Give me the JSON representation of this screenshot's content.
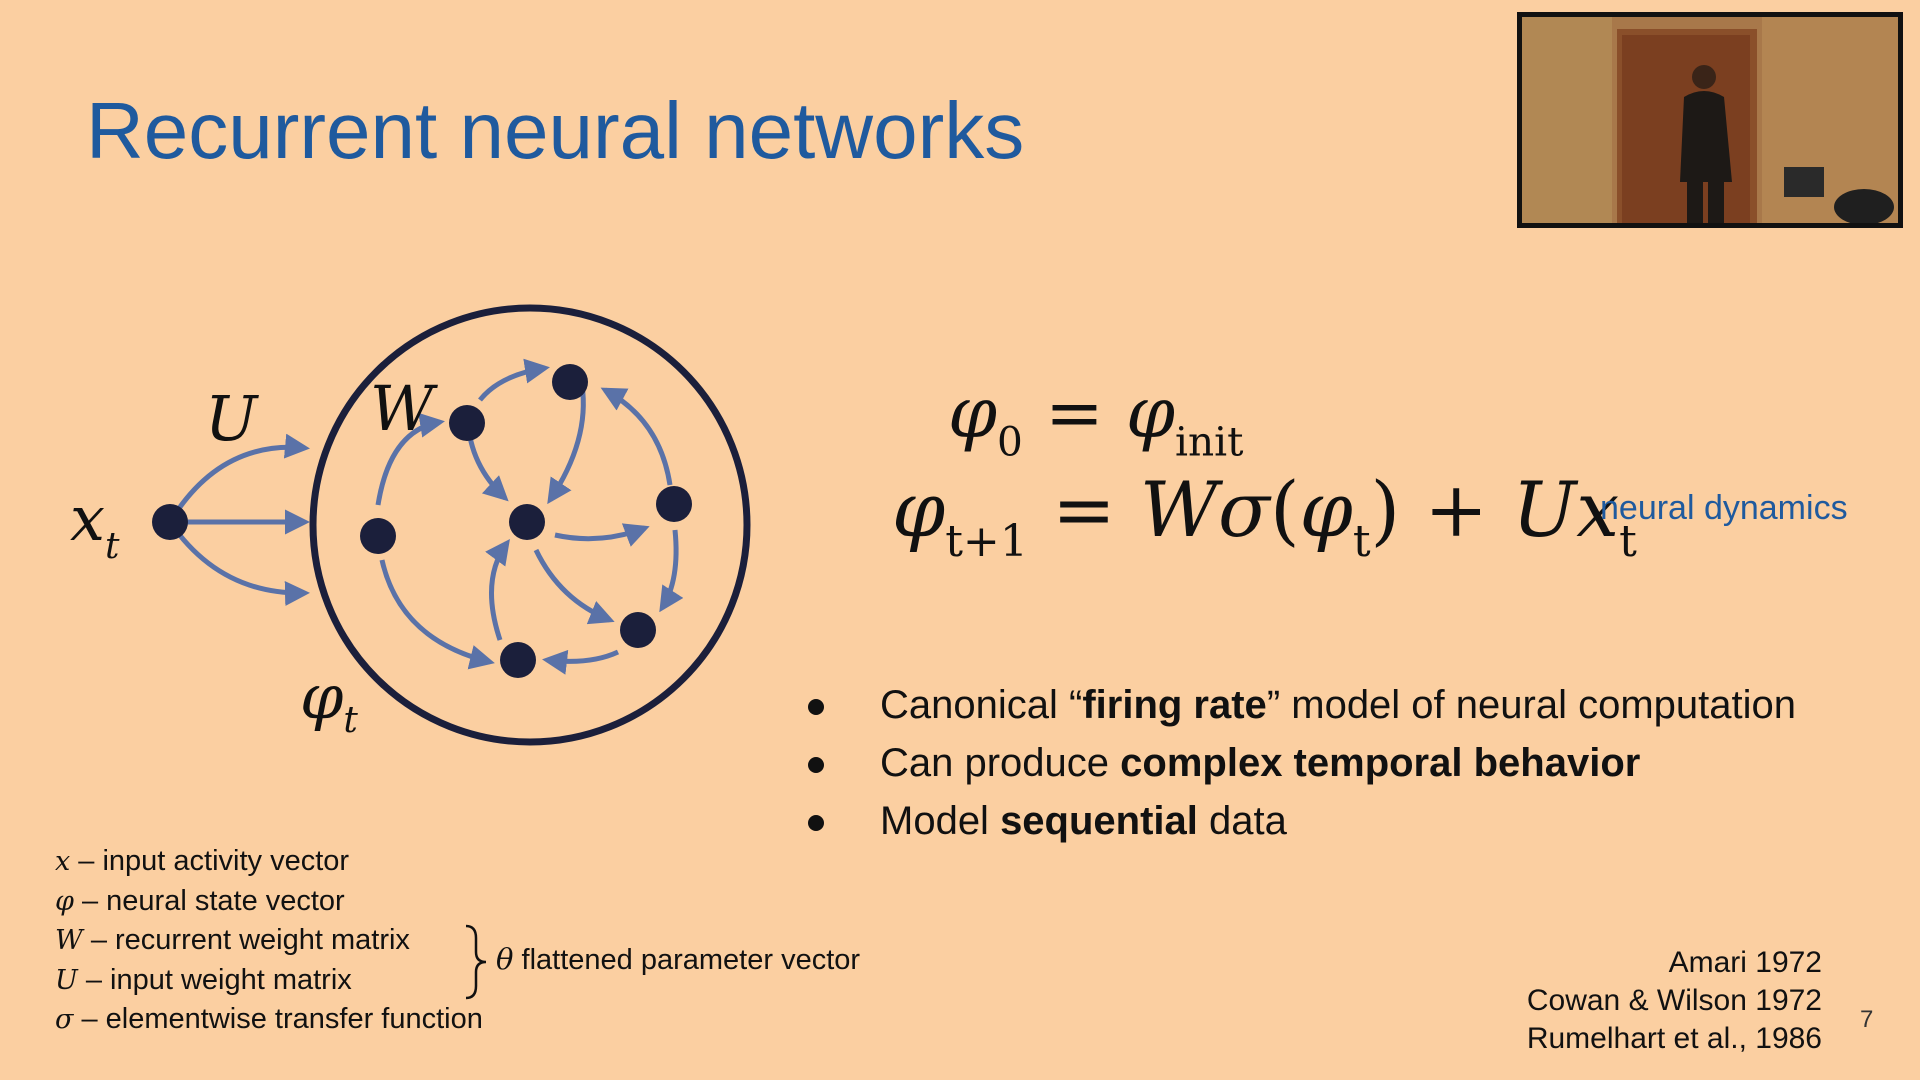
{
  "slide": {
    "title": "Recurrent neural networks",
    "page_number": "7",
    "colors": {
      "background": "#fbcfa1",
      "title": "#1f5a9e",
      "node": "#1b1f3b",
      "edge": "#5a72a8"
    }
  },
  "webcam": {
    "description_icon": "presenter-video-icon"
  },
  "diagram": {
    "input_label": "x",
    "input_sub": "t",
    "input_weight_label": "U",
    "recurrent_weight_label": "W",
    "state_label": "φ",
    "state_sub": "t"
  },
  "equations": {
    "eq1": {
      "lhs_symbol": "φ",
      "lhs_sub": "0",
      "equals": " = ",
      "rhs_symbol": "φ",
      "rhs_sub": "init"
    },
    "eq2": {
      "lhs_symbol": "φ",
      "lhs_sub": "t+1",
      "equals": " = ",
      "w": "W",
      "sigma": "σ",
      "open": "(",
      "phi": "φ",
      "phi_sub": "t",
      "close": ")",
      "plus": " + ",
      "u": "U",
      "x": "x",
      "x_sub": "t"
    },
    "note": "neural dynamics"
  },
  "bullets": [
    {
      "pre": "Canonical “",
      "bold": "firing rate",
      "post": "” model of neural computation"
    },
    {
      "pre": "Can produce ",
      "bold": "complex temporal behavior",
      "post": ""
    },
    {
      "pre": "Model ",
      "bold": "sequential",
      "post": " data"
    }
  ],
  "legend": [
    {
      "symbol": "x",
      "text": " – input activity vector"
    },
    {
      "symbol": "φ",
      "text": " – neural state vector"
    },
    {
      "symbol": "W",
      "text": " – recurrent weight matrix"
    },
    {
      "symbol": "U",
      "text": " – input weight matrix"
    },
    {
      "symbol": "σ",
      "text": " – elementwise transfer function"
    }
  ],
  "param": {
    "symbol": "θ",
    "text": " flattened parameter vector"
  },
  "references": [
    "Amari 1972",
    "Cowan & Wilson 1972",
    "Rumelhart et al., 1986"
  ]
}
